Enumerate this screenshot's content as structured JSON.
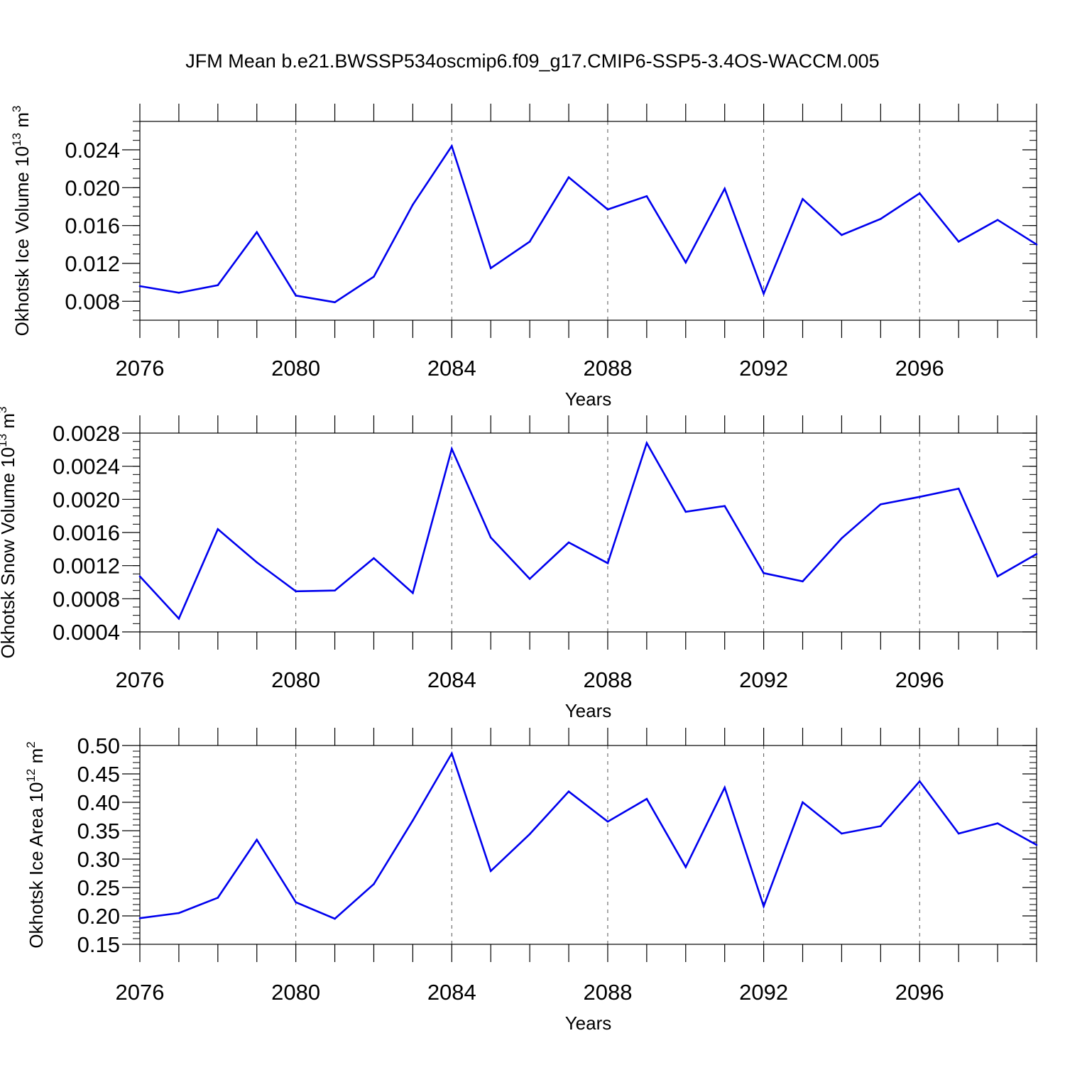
{
  "figure": {
    "title": "JFM Mean b.e21.BWSSP534oscmip6.f09_g17.CMIP6-SSP5-3.4OS-WACCM.005"
  },
  "style": {
    "line_color": "#0000ee",
    "frame_color": "#000000",
    "grid_color": "#555555"
  },
  "chart_data": [
    {
      "type": "line",
      "xlabel": "Years",
      "ylabel": {
        "text": "Okhotsk Ice Volume 10",
        "exponent": "13",
        "unit": "m",
        "unit_exponent": "3"
      },
      "xlim": [
        2076,
        2099
      ],
      "ylim": [
        0.006,
        0.027
      ],
      "x_ticks": [
        2076,
        2080,
        2084,
        2088,
        2092,
        2096
      ],
      "x_tick_labels": [
        "2076",
        "2080",
        "2084",
        "2088",
        "2092",
        "2096"
      ],
      "y_ticks": [
        0.008,
        0.012,
        0.016,
        0.02,
        0.024
      ],
      "y_tick_labels": [
        "0.008",
        "0.012",
        "0.016",
        "0.020",
        "0.024"
      ],
      "y_minor_step": 0.001,
      "grid_x": true,
      "x": [
        2076,
        2077,
        2078,
        2079,
        2080,
        2081,
        2082,
        2083,
        2084,
        2085,
        2086,
        2087,
        2088,
        2089,
        2090,
        2091,
        2092,
        2093,
        2094,
        2095,
        2096,
        2097,
        2098,
        2099
      ],
      "y": [
        0.0096,
        0.0089,
        0.0097,
        0.0153,
        0.0086,
        0.0079,
        0.0106,
        0.0182,
        0.0244,
        0.0115,
        0.0143,
        0.0211,
        0.0177,
        0.0191,
        0.0121,
        0.0199,
        0.0088,
        0.0188,
        0.015,
        0.0167,
        0.0194,
        0.0143,
        0.0166,
        0.014
      ]
    },
    {
      "type": "line",
      "xlabel": "Years",
      "ylabel": {
        "text": "Okhotsk Snow Volume 10",
        "exponent": "13",
        "unit": "m",
        "unit_exponent": "3"
      },
      "xlim": [
        2076,
        2099
      ],
      "ylim": [
        0.0004,
        0.0028
      ],
      "x_ticks": [
        2076,
        2080,
        2084,
        2088,
        2092,
        2096
      ],
      "x_tick_labels": [
        "2076",
        "2080",
        "2084",
        "2088",
        "2092",
        "2096"
      ],
      "y_ticks": [
        0.0004,
        0.0008,
        0.0012,
        0.0016,
        0.002,
        0.0024,
        0.0028
      ],
      "y_tick_labels": [
        "0.0004",
        "0.0008",
        "0.0012",
        "0.0016",
        "0.0020",
        "0.0024",
        "0.0028"
      ],
      "y_minor_step": 0.0001,
      "grid_x": true,
      "x": [
        2076,
        2077,
        2078,
        2079,
        2080,
        2081,
        2082,
        2083,
        2084,
        2085,
        2086,
        2087,
        2088,
        2089,
        2090,
        2091,
        2092,
        2093,
        2094,
        2095,
        2096,
        2097,
        2098,
        2099
      ],
      "y": [
        0.00107,
        0.00056,
        0.00164,
        0.00124,
        0.00089,
        0.0009,
        0.00129,
        0.00087,
        0.00261,
        0.00154,
        0.00104,
        0.00148,
        0.00123,
        0.00268,
        0.00185,
        0.00192,
        0.00111,
        0.00101,
        0.00153,
        0.00194,
        0.00203,
        0.00213,
        0.00107,
        0.00134
      ]
    },
    {
      "type": "line",
      "xlabel": "Years",
      "ylabel": {
        "text": "Okhotsk Ice Area 10",
        "exponent": "12",
        "unit": "m",
        "unit_exponent": "2"
      },
      "xlim": [
        2076,
        2099
      ],
      "ylim": [
        0.15,
        0.5
      ],
      "x_ticks": [
        2076,
        2080,
        2084,
        2088,
        2092,
        2096
      ],
      "x_tick_labels": [
        "2076",
        "2080",
        "2084",
        "2088",
        "2092",
        "2096"
      ],
      "y_ticks": [
        0.15,
        0.2,
        0.25,
        0.3,
        0.35,
        0.4,
        0.45,
        0.5
      ],
      "y_tick_labels": [
        "0.15",
        "0.20",
        "0.25",
        "0.30",
        "0.35",
        "0.40",
        "0.45",
        "0.50"
      ],
      "y_minor_step": 0.01,
      "grid_x": true,
      "x": [
        2076,
        2077,
        2078,
        2079,
        2080,
        2081,
        2082,
        2083,
        2084,
        2085,
        2086,
        2087,
        2088,
        2089,
        2090,
        2091,
        2092,
        2093,
        2094,
        2095,
        2096,
        2097,
        2098,
        2099
      ],
      "y": [
        0.196,
        0.205,
        0.232,
        0.334,
        0.224,
        0.195,
        0.256,
        0.368,
        0.486,
        0.279,
        0.344,
        0.419,
        0.366,
        0.406,
        0.286,
        0.426,
        0.217,
        0.4,
        0.345,
        0.358,
        0.437,
        0.345,
        0.363,
        0.325
      ]
    }
  ]
}
